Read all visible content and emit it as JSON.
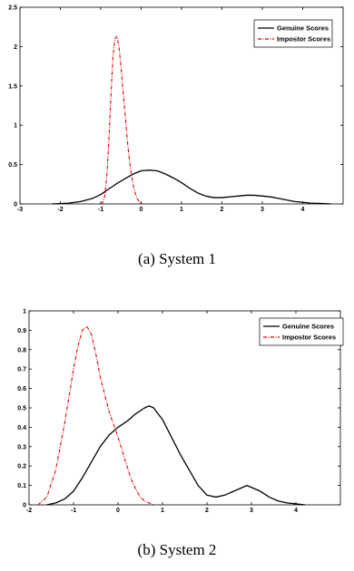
{
  "chart_data": [
    {
      "type": "line",
      "caption": "(a) System 1",
      "xlim": [
        -3,
        5
      ],
      "ylim": [
        0,
        2.5
      ],
      "x_ticks": [
        -3,
        -2,
        -1,
        0,
        1,
        2,
        3,
        4
      ],
      "y_ticks": [
        0,
        0.5,
        1,
        1.5,
        2,
        2.5
      ],
      "x_tick_labels": [
        "-3",
        "-2",
        "-1",
        "0",
        "1",
        "2",
        "3",
        "4"
      ],
      "y_tick_labels": [
        "0",
        "0.5",
        "1",
        "1.5",
        "2",
        "2.5"
      ],
      "legend_position": "top-right",
      "grid": false,
      "series": [
        {
          "name": "Genuine Scores",
          "color": "#000000",
          "style": "solid",
          "x": [
            -2.2,
            -1.8,
            -1.5,
            -1.2,
            -1.0,
            -0.8,
            -0.6,
            -0.4,
            -0.2,
            0.0,
            0.2,
            0.4,
            0.6,
            0.8,
            1.0,
            1.2,
            1.4,
            1.6,
            1.8,
            2.0,
            2.2,
            2.4,
            2.6,
            2.8,
            3.0,
            3.2,
            3.4,
            3.6,
            3.8,
            4.0,
            4.2,
            4.5,
            4.7
          ],
          "y": [
            0.0,
            0.01,
            0.03,
            0.07,
            0.12,
            0.19,
            0.26,
            0.32,
            0.38,
            0.42,
            0.43,
            0.42,
            0.38,
            0.33,
            0.27,
            0.2,
            0.14,
            0.1,
            0.08,
            0.08,
            0.09,
            0.1,
            0.11,
            0.11,
            0.1,
            0.09,
            0.07,
            0.05,
            0.03,
            0.02,
            0.01,
            0.005,
            0.0
          ]
        },
        {
          "name": "Impostor Scores",
          "color": "#e00000",
          "style": "dash-dot",
          "x": [
            -1.0,
            -0.95,
            -0.9,
            -0.85,
            -0.8,
            -0.75,
            -0.7,
            -0.65,
            -0.6,
            -0.55,
            -0.5,
            -0.45,
            -0.4,
            -0.35,
            -0.3,
            -0.25,
            -0.2,
            -0.15,
            -0.1,
            -0.05,
            0.0,
            0.05
          ],
          "y": [
            0.0,
            0.02,
            0.1,
            0.35,
            0.8,
            1.35,
            1.85,
            2.1,
            2.13,
            2.0,
            1.75,
            1.45,
            1.15,
            0.85,
            0.6,
            0.4,
            0.25,
            0.14,
            0.07,
            0.03,
            0.01,
            0.0
          ]
        }
      ]
    },
    {
      "type": "line",
      "caption": "(b) System 2",
      "xlim": [
        -2,
        5
      ],
      "ylim": [
        0,
        1
      ],
      "x_ticks": [
        -2,
        -1,
        0,
        1,
        2,
        3,
        4
      ],
      "y_ticks": [
        0,
        0.1,
        0.2,
        0.3,
        0.4,
        0.5,
        0.6,
        0.7,
        0.8,
        0.9,
        1
      ],
      "x_tick_labels": [
        "-2",
        "-1",
        "0",
        "1",
        "2",
        "3",
        "4"
      ],
      "y_tick_labels": [
        "0",
        "0.1",
        "0.2",
        "0.3",
        "0.4",
        "0.5",
        "0.6",
        "0.7",
        "0.8",
        "0.9",
        "1"
      ],
      "legend_position": "top-right",
      "grid": false,
      "series": [
        {
          "name": "Genuine Scores",
          "color": "#000000",
          "style": "solid",
          "x": [
            -1.6,
            -1.4,
            -1.2,
            -1.0,
            -0.8,
            -0.6,
            -0.4,
            -0.2,
            0.0,
            0.2,
            0.4,
            0.6,
            0.7,
            0.8,
            1.0,
            1.2,
            1.4,
            1.6,
            1.8,
            2.0,
            2.2,
            2.4,
            2.6,
            2.8,
            2.9,
            3.0,
            3.2,
            3.4,
            3.6,
            3.8,
            4.0,
            4.2
          ],
          "y": [
            0.0,
            0.01,
            0.03,
            0.07,
            0.14,
            0.22,
            0.3,
            0.36,
            0.4,
            0.43,
            0.47,
            0.5,
            0.51,
            0.5,
            0.44,
            0.35,
            0.26,
            0.18,
            0.1,
            0.05,
            0.04,
            0.05,
            0.07,
            0.09,
            0.1,
            0.09,
            0.07,
            0.04,
            0.02,
            0.01,
            0.005,
            0.0
          ]
        },
        {
          "name": "Impostor Scores",
          "color": "#e00000",
          "style": "dash-dot",
          "x": [
            -1.8,
            -1.6,
            -1.4,
            -1.2,
            -1.0,
            -0.9,
            -0.8,
            -0.7,
            -0.6,
            -0.5,
            -0.4,
            -0.2,
            0.0,
            0.2,
            0.3,
            0.4,
            0.5,
            0.6,
            0.7,
            0.8
          ],
          "y": [
            0.0,
            0.04,
            0.18,
            0.42,
            0.7,
            0.82,
            0.9,
            0.92,
            0.88,
            0.78,
            0.66,
            0.48,
            0.35,
            0.2,
            0.13,
            0.08,
            0.04,
            0.02,
            0.01,
            0.0
          ]
        }
      ]
    }
  ]
}
